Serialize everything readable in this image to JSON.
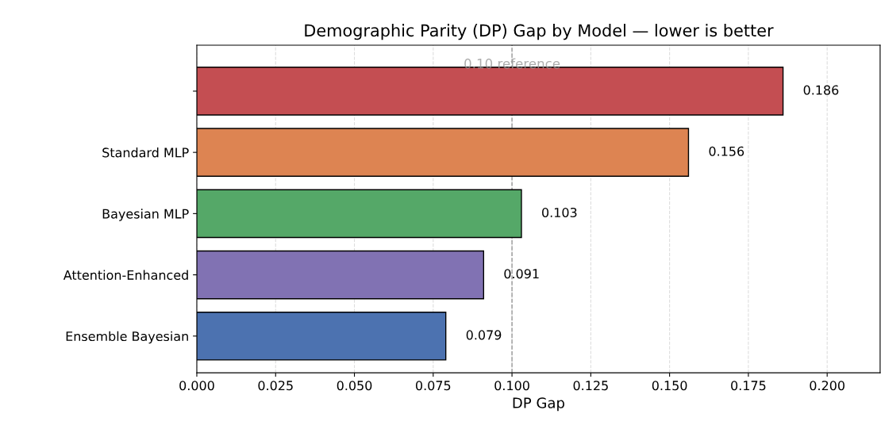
{
  "chart_data": {
    "type": "bar",
    "orientation": "horizontal",
    "title": "Demographic Parity (DP) Gap by Model — lower is better",
    "xlabel": "DP Gap",
    "categories": [
      null,
      "Standard MLP",
      "Bayesian MLP",
      "Attention-Enhanced",
      "Ensemble Bayesian"
    ],
    "values": [
      0.186,
      0.156,
      0.103,
      0.091,
      0.079
    ],
    "colors": [
      "#c44e52",
      "#dd8452",
      "#55a868",
      "#8172b3",
      "#4c72b0"
    ],
    "data_labels": true,
    "xlim": [
      0,
      0.2168
    ],
    "xticks": [
      {
        "value": 0,
        "label": "0.000"
      },
      0.025,
      {
        "value": 0.05,
        "label": "0.050"
      },
      0.075,
      {
        "value": 0.1,
        "label": "0.100"
      },
      0.125,
      {
        "value": 0.15,
        "label": "0.150"
      },
      0.175,
      {
        "value": 0.2,
        "label": "0.200"
      }
    ],
    "ref_lines": [
      {
        "axis": "x",
        "value": 0.1,
        "label": "0.10 reference",
        "color": "#999999",
        "line_style": "dashed"
      }
    ],
    "grid": "x"
  }
}
